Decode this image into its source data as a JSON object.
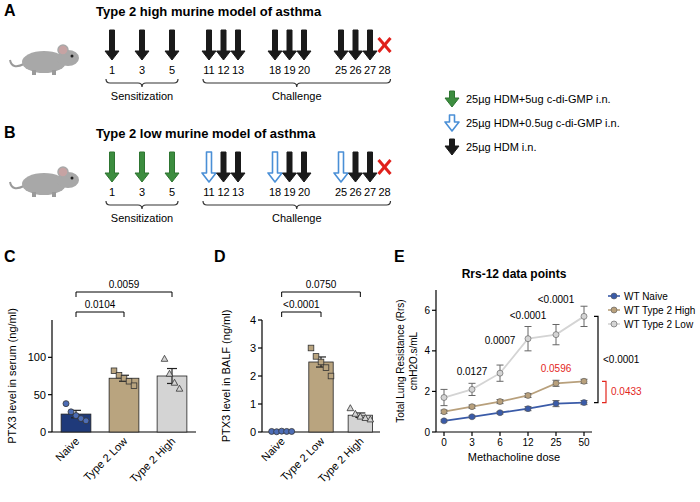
{
  "diagram": {
    "panels": [
      {
        "label": "A",
        "title": "Type 2 high murine model of asthma",
        "days": [
          {
            "day": 1,
            "arrow": "black"
          },
          {
            "day": 3,
            "arrow": "black"
          },
          {
            "day": 5,
            "arrow": "black"
          },
          {
            "day": 11,
            "arrow": "black"
          },
          {
            "day": 12,
            "arrow": "black"
          },
          {
            "day": 13,
            "arrow": "black"
          },
          {
            "day": 18,
            "arrow": "black"
          },
          {
            "day": 19,
            "arrow": "black"
          },
          {
            "day": 20,
            "arrow": "black"
          },
          {
            "day": 25,
            "arrow": "black"
          },
          {
            "day": 26,
            "arrow": "black"
          },
          {
            "day": 27,
            "arrow": "black"
          },
          {
            "day": 28,
            "arrow": "end"
          }
        ],
        "phases": [
          {
            "text": "Sensitization",
            "from": 1,
            "to": 5
          },
          {
            "text": "Challenge",
            "from": 11,
            "to": 28
          }
        ]
      },
      {
        "label": "B",
        "title": "Type 2 low murine model of asthma",
        "days": [
          {
            "day": 1,
            "arrow": "green"
          },
          {
            "day": 3,
            "arrow": "green"
          },
          {
            "day": 5,
            "arrow": "green"
          },
          {
            "day": 11,
            "arrow": "blue-outline"
          },
          {
            "day": 12,
            "arrow": "black"
          },
          {
            "day": 13,
            "arrow": "black"
          },
          {
            "day": 18,
            "arrow": "blue-outline"
          },
          {
            "day": 19,
            "arrow": "black"
          },
          {
            "day": 20,
            "arrow": "black"
          },
          {
            "day": 25,
            "arrow": "blue-outline"
          },
          {
            "day": 26,
            "arrow": "black"
          },
          {
            "day": 27,
            "arrow": "black"
          },
          {
            "day": 28,
            "arrow": "end"
          }
        ],
        "phases": [
          {
            "text": "Sensitization",
            "from": 1,
            "to": 5
          },
          {
            "text": "Challenge",
            "from": 11,
            "to": 28
          }
        ]
      }
    ],
    "legend": [
      {
        "arrow": "green",
        "text": "25µg HDM+5ug c-di-GMP i.n."
      },
      {
        "arrow": "blue-outline",
        "text": "25µg HDM+0.5ug c-di-GMP i.n."
      },
      {
        "arrow": "black",
        "text": "25µg HDM i.n."
      }
    ]
  },
  "chart_data": [
    {
      "panel_label": "C",
      "type": "bar",
      "y_label": "PTX3 level in serum (ng/ml)",
      "categories": [
        "Naive",
        "Type 2 Low",
        "Type 2 High"
      ],
      "values": [
        24,
        72,
        75
      ],
      "errors": [
        5,
        4,
        10
      ],
      "points": [
        [
          38,
          27,
          22,
          18,
          15
        ],
        [
          82,
          76,
          72,
          68,
          62
        ],
        [
          98,
          78,
          66,
          58
        ]
      ],
      "colors": [
        "#1f3a7a",
        "#b9a47f",
        "#d4d4d4"
      ],
      "ylim": [
        0,
        150
      ],
      "yticks": [
        0,
        50,
        100
      ],
      "comparisons": [
        {
          "from": "Naive",
          "to": "Type 2 Low",
          "label": "0.0104"
        },
        {
          "from": "Naive",
          "to": "Type 2 High",
          "label": "0.0059"
        }
      ]
    },
    {
      "panel_label": "D",
      "type": "bar",
      "y_label": "PTX3 level in BALF (ng/ml)",
      "categories": [
        "Naive",
        "Type 2 Low",
        "Type 2 High"
      ],
      "values": [
        0.02,
        2.5,
        0.6
      ],
      "errors": [
        0.01,
        0.18,
        0.08
      ],
      "points": [
        [
          0.02,
          0.01,
          0.03,
          0.02,
          0.02
        ],
        [
          3.0,
          2.7,
          2.5,
          2.3,
          2.0
        ],
        [
          0.85,
          0.65,
          0.55,
          0.5,
          0.45
        ]
      ],
      "colors": [
        "#1f3a7a",
        "#b9a47f",
        "#d4d4d4"
      ],
      "ylim": [
        0,
        4
      ],
      "yticks": [
        0,
        1,
        2,
        3,
        4
      ],
      "comparisons": [
        {
          "from": "Naive",
          "to": "Type 2 Low",
          "label": "<0.0001"
        },
        {
          "from": "Naive",
          "to": "Type 2 High",
          "label": "0.0750"
        }
      ]
    },
    {
      "panel_label": "E",
      "type": "line",
      "title": "Rrs-12 data points",
      "x_label": "Methacholine dose",
      "y_label": [
        "Total Lung Resistance (Rrs)",
        "cmH2O.s/mL"
      ],
      "categories": [
        "0",
        "3",
        "6",
        "12",
        "25",
        "50"
      ],
      "series": [
        {
          "name": "WT Naive",
          "color": "#3a5ba8",
          "values": [
            0.55,
            0.75,
            0.95,
            1.15,
            1.4,
            1.45
          ],
          "errors": [
            0.05,
            0.05,
            0.06,
            0.1,
            0.15,
            0.1
          ]
        },
        {
          "name": "WT Type 2 High",
          "color": "#b8a07c",
          "values": [
            1.0,
            1.25,
            1.5,
            1.8,
            2.4,
            2.5
          ],
          "errors": [
            0.08,
            0.08,
            0.1,
            0.1,
            0.15,
            0.1
          ]
        },
        {
          "name": "WT Type 2 Low",
          "color": "#d4d4d4",
          "values": [
            1.7,
            2.1,
            2.9,
            4.6,
            4.8,
            5.7
          ],
          "errors": [
            0.4,
            0.3,
            0.4,
            0.6,
            0.5,
            0.5
          ]
        }
      ],
      "ylim": [
        0,
        7
      ],
      "yticks": [
        0,
        2,
        4,
        6
      ],
      "marker": "circle",
      "legend": "right",
      "annotations": [
        {
          "text": "0.0127",
          "x": "3"
        },
        {
          "text": "0.0007",
          "x": "6"
        },
        {
          "text": "<0.0001",
          "x": "12"
        },
        {
          "text": "<0.0001",
          "x": "25"
        },
        {
          "text": "<0.0001",
          "x": "50",
          "bracket": [
            "WT Type 2 Low",
            "WT Naive"
          ]
        },
        {
          "text": "0.0596",
          "x": "25",
          "series": "WT Type 2 High",
          "color": "#e3261d"
        },
        {
          "text": "0.0433",
          "x": "50",
          "bracket": [
            "WT Type 2 High",
            "WT Naive"
          ],
          "color": "#e3261d"
        }
      ]
    }
  ]
}
